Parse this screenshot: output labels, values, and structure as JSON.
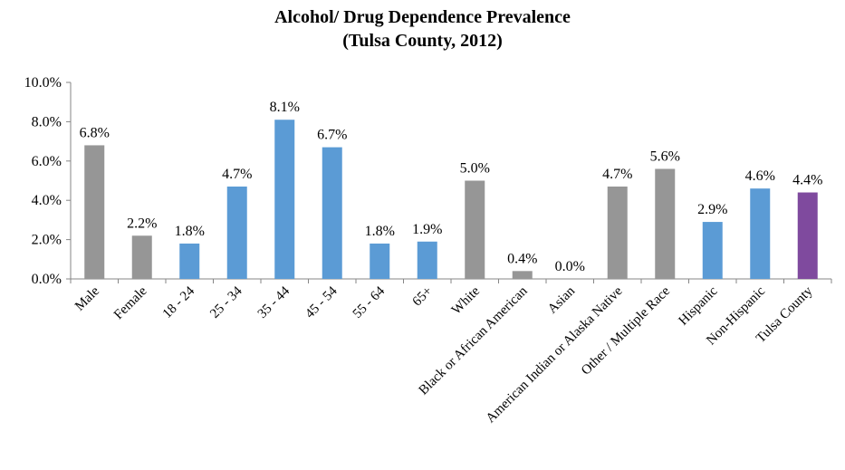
{
  "chart_data": {
    "type": "bar",
    "title": "Alcohol/ Drug Dependence Prevalence",
    "subtitle": "(Tulsa County, 2012)",
    "xlabel": "",
    "ylabel": "",
    "ylim": [
      0,
      10
    ],
    "yticks": [
      "0.0%",
      "2.0%",
      "4.0%",
      "6.0%",
      "8.0%",
      "10.0%"
    ],
    "grid": false,
    "legend": "none",
    "categories": [
      "Male",
      "Female",
      "18 - 24",
      "25 - 34",
      "35 - 44",
      "45 - 54",
      "55 - 64",
      "65+",
      "White",
      "Black or African American",
      "Asian",
      "American Indian or Alaska Native",
      "Other / Multiple Race",
      "Hispanic",
      "Non-Hispanic",
      "Tulsa County"
    ],
    "values": [
      6.8,
      2.2,
      1.8,
      4.7,
      8.1,
      6.7,
      1.8,
      1.9,
      5.0,
      0.4,
      0.0,
      4.7,
      5.6,
      2.9,
      4.6,
      4.4
    ],
    "labels": [
      "6.8%",
      "2.2%",
      "1.8%",
      "4.7%",
      "8.1%",
      "6.7%",
      "1.8%",
      "1.9%",
      "5.0%",
      "0.4%",
      "0.0%",
      "4.7%",
      "5.6%",
      "2.9%",
      "4.6%",
      "4.4%"
    ],
    "colors": [
      "#969696",
      "#969696",
      "#5b9bd5",
      "#5b9bd5",
      "#5b9bd5",
      "#5b9bd5",
      "#5b9bd5",
      "#5b9bd5",
      "#969696",
      "#969696",
      "#969696",
      "#969696",
      "#969696",
      "#5b9bd5",
      "#5b9bd5",
      "#7f4a9e"
    ]
  }
}
